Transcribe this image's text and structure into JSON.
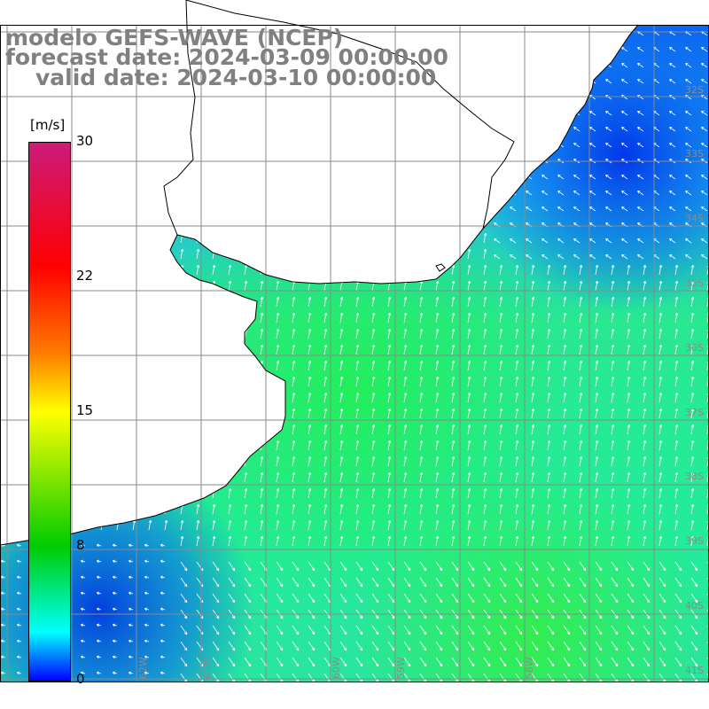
{
  "header": {
    "line1": "modelo GEFS-WAVE (NCEP)",
    "line2": "forecast date: 2024-03-09 00:00:00",
    "line3": "valid date: 2024-03-10 00:00:00"
  },
  "colorbar": {
    "unit": "[m/s]",
    "ticks": [
      "30",
      "22",
      "15",
      "8",
      "0"
    ],
    "tick_values": [
      30,
      22,
      15,
      8,
      0
    ],
    "range": [
      0,
      30
    ],
    "colors": {
      "v30": "#cc1a7a",
      "v23": "#ff0000",
      "v18": "#ff7a00",
      "v15": "#ffff00",
      "v8": "#00ffff",
      "v0": "#0000ff"
    }
  },
  "map": {
    "field": "wind speed and direction",
    "land_color": "#ffffff",
    "coastline_color": "#000000",
    "grid_color": "#808080",
    "lat_labels": [
      "32S",
      "33S",
      "34S",
      "35S",
      "36S",
      "37S",
      "38S",
      "39S",
      "40S",
      "41S"
    ],
    "lat_values": [
      -32,
      -33,
      -34,
      -35,
      -36,
      -37,
      -38,
      -39,
      -40,
      -41
    ],
    "lon_labels": [
      "62W",
      "61W",
      "60W",
      "59W",
      "58W"
    ],
    "lon_values": [
      -62,
      -61,
      -60,
      -59,
      -58
    ]
  }
}
